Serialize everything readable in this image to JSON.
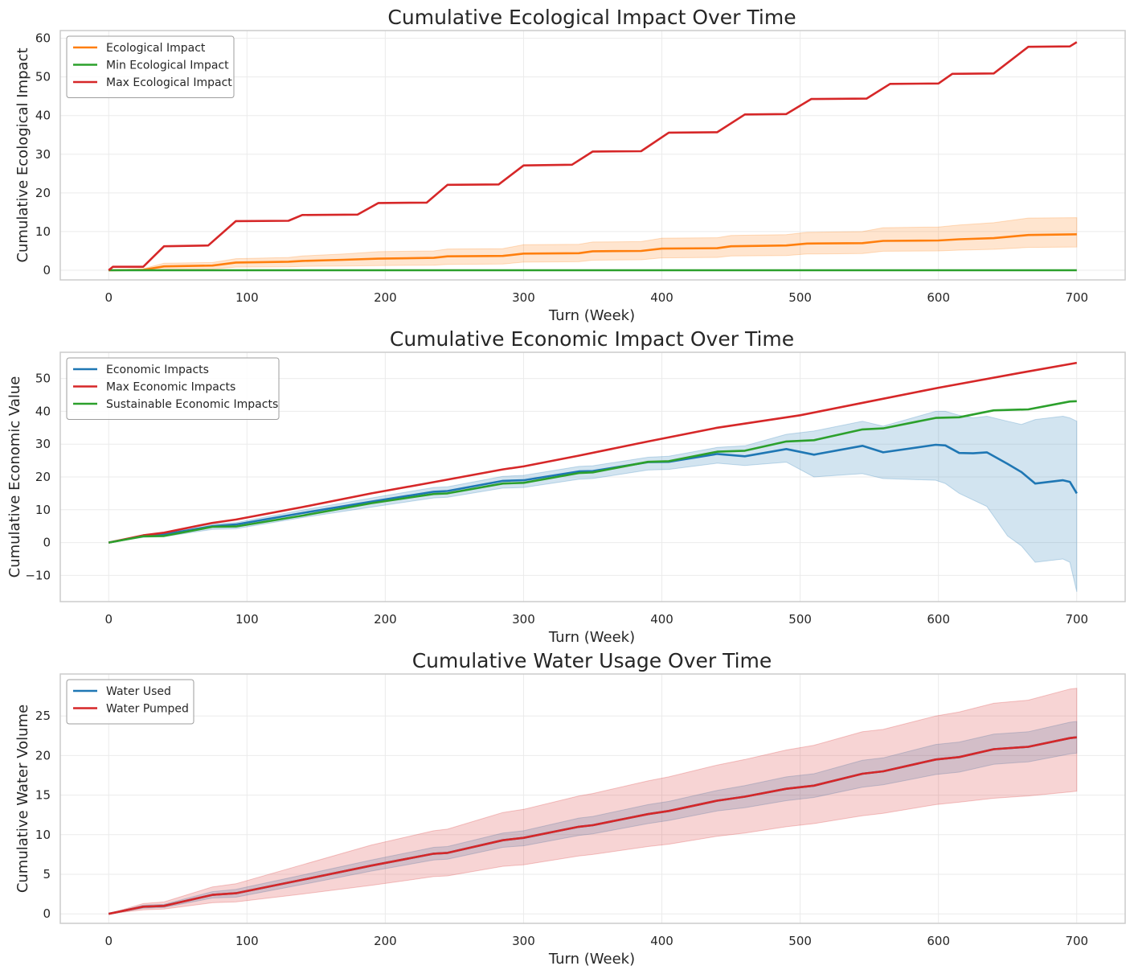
{
  "colors": {
    "orange": "#ff7f0e",
    "green": "#2ca02c",
    "red": "#d62728",
    "blue": "#1f77b4",
    "grid": "#ebebeb",
    "frame": "#cccccc"
  },
  "chart_data": [
    {
      "type": "line",
      "title": "Cumulative Ecological Impact Over Time",
      "xlabel": "Turn (Week)",
      "ylabel": "Cumulative Ecological Impact",
      "xlim": [
        -35,
        735
      ],
      "ylim": [
        -2.5,
        62
      ],
      "xticks": [
        0,
        100,
        200,
        300,
        400,
        500,
        600,
        700
      ],
      "yticks": [
        0,
        10,
        20,
        30,
        40,
        50,
        60
      ],
      "ytick_labels": [
        "0",
        "10",
        "20",
        "30",
        "40",
        "50",
        "60"
      ],
      "grid": true,
      "legend_position": "upper left",
      "series": [
        {
          "name": "Ecological Impact",
          "color": "#ff7f0e",
          "x": [
            0,
            25,
            40,
            75,
            92,
            130,
            140,
            170,
            195,
            235,
            245,
            285,
            300,
            340,
            350,
            385,
            400,
            440,
            450,
            490,
            505,
            545,
            560,
            600,
            615,
            640,
            665,
            700
          ],
          "y": [
            0,
            0.1,
            1.0,
            1.2,
            2.0,
            2.2,
            2.4,
            2.7,
            3.0,
            3.2,
            3.6,
            3.7,
            4.3,
            4.4,
            4.9,
            5.0,
            5.6,
            5.7,
            6.2,
            6.4,
            6.9,
            7.0,
            7.6,
            7.7,
            8.0,
            8.3,
            9.1,
            9.3
          ],
          "band_lower": [
            0,
            0.0,
            0.2,
            0.3,
            0.8,
            0.9,
            1.0,
            1.1,
            1.2,
            1.3,
            1.5,
            1.6,
            2.1,
            2.2,
            2.6,
            2.7,
            3.2,
            3.3,
            3.7,
            3.8,
            4.2,
            4.3,
            4.9,
            5.0,
            5.2,
            5.4,
            5.9,
            6.0
          ],
          "band_upper": [
            0,
            0.4,
            1.8,
            2.0,
            3.0,
            3.3,
            3.7,
            4.2,
            4.8,
            5.0,
            5.5,
            5.6,
            6.6,
            6.7,
            7.3,
            7.4,
            8.3,
            8.4,
            9.0,
            9.2,
            9.8,
            10.0,
            11.0,
            11.2,
            11.7,
            12.3,
            13.5,
            13.6
          ]
        },
        {
          "name": "Min Ecological Impact",
          "color": "#2ca02c",
          "x": [
            0,
            700
          ],
          "y": [
            0,
            0
          ]
        },
        {
          "name": "Max Ecological Impact",
          "color": "#d62728",
          "x": [
            0,
            3,
            25,
            40,
            72,
            92,
            130,
            140,
            180,
            195,
            230,
            245,
            282,
            300,
            335,
            350,
            385,
            405,
            440,
            460,
            490,
            508,
            548,
            565,
            600,
            610,
            640,
            665,
            695,
            700
          ],
          "y": [
            0,
            0.9,
            0.9,
            6.2,
            6.4,
            12.7,
            12.8,
            14.3,
            14.4,
            17.4,
            17.5,
            22.1,
            22.2,
            27.1,
            27.3,
            30.7,
            30.8,
            35.6,
            35.7,
            40.3,
            40.4,
            44.3,
            44.4,
            48.2,
            48.3,
            50.8,
            50.9,
            57.8,
            57.9,
            59.0
          ]
        }
      ]
    },
    {
      "type": "line",
      "title": "Cumulative Economic Impact Over Time",
      "xlabel": "Turn (Week)",
      "ylabel": "Cumulative Economic Value",
      "xlim": [
        -35,
        735
      ],
      "ylim": [
        -18,
        58
      ],
      "xticks": [
        0,
        100,
        200,
        300,
        400,
        500,
        600,
        700
      ],
      "yticks": [
        -10,
        0,
        10,
        20,
        30,
        40,
        50
      ],
      "ytick_labels": [
        "−10",
        "0",
        "10",
        "20",
        "30",
        "40",
        "50"
      ],
      "grid": true,
      "legend_position": "upper left",
      "series": [
        {
          "name": "Economic Impacts",
          "color": "#1f77b4",
          "x": [
            0,
            25,
            40,
            75,
            92,
            140,
            190,
            235,
            245,
            285,
            300,
            340,
            350,
            390,
            405,
            440,
            460,
            490,
            510,
            545,
            560,
            598,
            605,
            615,
            625,
            635,
            650,
            660,
            670,
            690,
            695,
            700
          ],
          "y": [
            0,
            2.0,
            2.5,
            5.0,
            5.5,
            9.0,
            12.5,
            15.5,
            15.7,
            18.8,
            19.0,
            21.7,
            21.8,
            24.5,
            24.6,
            27.0,
            26.3,
            28.5,
            26.8,
            29.5,
            27.5,
            29.8,
            29.6,
            27.3,
            27.2,
            27.5,
            24.0,
            21.5,
            18.0,
            19.0,
            18.5,
            15.0
          ],
          "band_lower": [
            0,
            1.6,
            1.8,
            4.0,
            4.2,
            7.6,
            10.8,
            13.6,
            13.8,
            16.6,
            16.8,
            19.3,
            19.5,
            22.1,
            22.3,
            24.2,
            23.5,
            24.5,
            20.0,
            21.0,
            19.5,
            19.0,
            18.0,
            15.0,
            13.0,
            11.0,
            2.0,
            -1.0,
            -6.0,
            -5.0,
            -6.0,
            -15.0
          ],
          "band_upper": [
            0,
            2.4,
            3.0,
            5.7,
            6.1,
            9.9,
            13.6,
            16.8,
            17.0,
            20.2,
            20.5,
            23.2,
            23.4,
            26.0,
            26.3,
            29.0,
            29.5,
            33.0,
            34.0,
            37.0,
            35.5,
            40.0,
            40.0,
            38.8,
            38.0,
            38.5,
            37.0,
            36.0,
            37.5,
            38.5,
            38.0,
            37.0
          ]
        },
        {
          "name": "Max Economic Impacts",
          "color": "#d62728",
          "x": [
            0,
            25,
            40,
            75,
            92,
            140,
            190,
            240,
            285,
            300,
            340,
            390,
            440,
            500,
            550,
            600,
            660,
            700
          ],
          "y": [
            0,
            2.2,
            3.0,
            6.0,
            7.0,
            10.8,
            15.0,
            18.8,
            22.3,
            23.2,
            26.5,
            30.8,
            35.0,
            38.8,
            43.0,
            47.2,
            51.8,
            54.8
          ]
        },
        {
          "name": "Sustainable Economic Impacts",
          "color": "#2ca02c",
          "x": [
            0,
            25,
            40,
            75,
            92,
            140,
            190,
            235,
            245,
            285,
            300,
            340,
            350,
            390,
            405,
            440,
            460,
            490,
            510,
            545,
            560,
            598,
            615,
            640,
            665,
            695,
            700
          ],
          "y": [
            0,
            1.9,
            2.0,
            4.8,
            4.9,
            8.2,
            12.0,
            14.8,
            15.0,
            18.0,
            18.2,
            21.2,
            21.4,
            24.6,
            24.8,
            27.7,
            28.0,
            30.8,
            31.2,
            34.5,
            34.8,
            38.0,
            38.2,
            40.3,
            40.6,
            43.0,
            43.1
          ]
        }
      ]
    },
    {
      "type": "line",
      "title": "Cumulative Water Usage Over Time",
      "xlabel": "Turn (Week)",
      "ylabel": "Cumulative Water Volume",
      "xlim": [
        -35,
        735
      ],
      "ylim": [
        -1.2,
        30.3
      ],
      "xticks": [
        0,
        100,
        200,
        300,
        400,
        500,
        600,
        700
      ],
      "yticks": [
        0,
        5,
        10,
        15,
        20,
        25
      ],
      "ytick_labels": [
        "0",
        "5",
        "10",
        "15",
        "20",
        "25"
      ],
      "grid": true,
      "legend_position": "upper left",
      "series": [
        {
          "name": "Water Used",
          "color": "#1f77b4",
          "x": [
            0,
            25,
            40,
            75,
            92,
            140,
            190,
            235,
            245,
            285,
            300,
            340,
            350,
            390,
            405,
            440,
            460,
            490,
            510,
            545,
            560,
            598,
            615,
            640,
            665,
            695,
            700
          ],
          "y": [
            0,
            0.9,
            1.0,
            2.4,
            2.6,
            4.3,
            6.1,
            7.6,
            7.7,
            9.3,
            9.6,
            11.0,
            11.2,
            12.6,
            13.0,
            14.3,
            14.8,
            15.8,
            16.2,
            17.7,
            18.0,
            19.5,
            19.8,
            20.8,
            21.1,
            22.2,
            22.3
          ],
          "band_lower": [
            0,
            0.7,
            0.8,
            2.0,
            2.1,
            3.7,
            5.4,
            6.8,
            6.9,
            8.4,
            8.6,
            9.9,
            10.1,
            11.4,
            11.8,
            13.0,
            13.4,
            14.3,
            14.7,
            16.0,
            16.3,
            17.6,
            17.9,
            18.9,
            19.2,
            20.2,
            20.3
          ],
          "band_upper": [
            0,
            1.1,
            1.2,
            2.8,
            3.1,
            4.9,
            6.8,
            8.4,
            8.5,
            10.2,
            10.5,
            12.1,
            12.3,
            13.8,
            14.2,
            15.6,
            16.2,
            17.3,
            17.7,
            19.4,
            19.7,
            21.4,
            21.7,
            22.7,
            23.0,
            24.2,
            24.3
          ]
        },
        {
          "name": "Water Pumped",
          "color": "#d62728",
          "x": [
            0,
            25,
            40,
            75,
            92,
            140,
            190,
            235,
            245,
            285,
            300,
            340,
            350,
            390,
            405,
            440,
            460,
            490,
            510,
            545,
            560,
            598,
            615,
            640,
            665,
            695,
            700
          ],
          "y": [
            0,
            0.9,
            1.0,
            2.4,
            2.6,
            4.3,
            6.1,
            7.6,
            7.7,
            9.3,
            9.6,
            11.0,
            11.2,
            12.6,
            13.0,
            14.3,
            14.8,
            15.8,
            16.2,
            17.7,
            18.0,
            19.5,
            19.8,
            20.8,
            21.1,
            22.2,
            22.3
          ],
          "band_lower": [
            0,
            0.5,
            0.6,
            1.4,
            1.5,
            2.5,
            3.6,
            4.7,
            4.8,
            6.0,
            6.2,
            7.3,
            7.5,
            8.5,
            8.8,
            9.8,
            10.2,
            11.0,
            11.4,
            12.4,
            12.7,
            13.8,
            14.1,
            14.6,
            14.9,
            15.4,
            15.5
          ],
          "band_upper": [
            0,
            1.3,
            1.5,
            3.4,
            3.8,
            6.2,
            8.7,
            10.5,
            10.7,
            12.8,
            13.2,
            14.9,
            15.2,
            16.8,
            17.3,
            18.8,
            19.5,
            20.7,
            21.3,
            23.0,
            23.3,
            25.0,
            25.5,
            26.6,
            27.0,
            28.4,
            28.5
          ]
        }
      ]
    }
  ]
}
